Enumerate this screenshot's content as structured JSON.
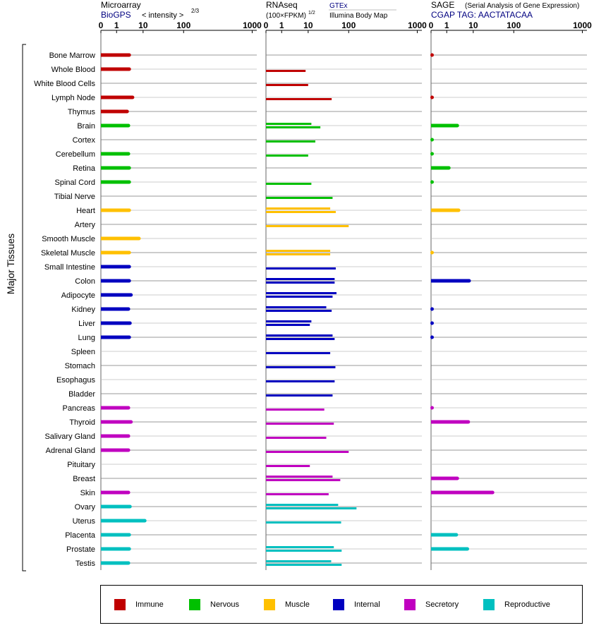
{
  "chart_data": {
    "type": "bar",
    "axis_title": "Major Tissues",
    "tissues": [
      "Bone Marrow",
      "Whole Blood",
      "White Blood Cells",
      "Lymph Node",
      "Thymus",
      "Brain",
      "Cortex",
      "Cerebellum",
      "Retina",
      "Spinal Cord",
      "Tibial Nerve",
      "Heart",
      "Artery",
      "Smooth Muscle",
      "Skeletal Muscle",
      "Small Intestine",
      "Colon",
      "Adipocyte",
      "Kidney",
      "Liver",
      "Lung",
      "Spleen",
      "Stomach",
      "Esophagus",
      "Bladder",
      "Pancreas",
      "Thyroid",
      "Salivary Gland",
      "Adrenal Gland",
      "Pituitary",
      "Breast",
      "Skin",
      "Ovary",
      "Uterus",
      "Placenta",
      "Prostate",
      "Testis"
    ],
    "groups": [
      "immune",
      "immune",
      "immune",
      "immune",
      "immune",
      "nervous",
      "nervous",
      "nervous",
      "nervous",
      "nervous",
      "nervous",
      "muscle",
      "muscle",
      "muscle",
      "muscle",
      "internal",
      "internal",
      "internal",
      "internal",
      "internal",
      "internal",
      "internal",
      "internal",
      "internal",
      "internal",
      "secretory",
      "secretory",
      "secretory",
      "secretory",
      "secretory",
      "secretory",
      "secretory",
      "reproductive",
      "reproductive",
      "reproductive",
      "reproductive",
      "reproductive"
    ],
    "colors": {
      "immune": "#c00000",
      "nervous": "#00c000",
      "muscle": "#ffc000",
      "internal": "#0000c0",
      "secretory": "#c000c0",
      "reproductive": "#00c0c0"
    },
    "tick_labels": [
      "0",
      "1",
      "10",
      "100",
      "1000"
    ],
    "tick_values": [
      0,
      1,
      10,
      100,
      1000
    ],
    "panels": [
      {
        "title": "Microarray",
        "source": "BioGPS",
        "scale_label": "< intensity >",
        "exponent": "2/3",
        "values": [
          3.0,
          3.0,
          null,
          4.0,
          2.5,
          2.8,
          null,
          2.8,
          3.0,
          3.0,
          null,
          3.0,
          null,
          7.0,
          3.0,
          3.0,
          3.0,
          3.5,
          2.8,
          3.2,
          3.0,
          null,
          null,
          null,
          null,
          2.8,
          3.5,
          2.8,
          2.8,
          null,
          null,
          2.8,
          3.2,
          11.0,
          3.0,
          3.0,
          2.8
        ],
        "values_b": [
          null,
          null,
          null,
          null,
          null,
          null,
          null,
          null,
          null,
          null,
          null,
          null,
          null,
          null,
          null,
          null,
          null,
          null,
          null,
          null,
          null,
          null,
          null,
          null,
          null,
          null,
          null,
          null,
          null,
          null,
          null,
          null,
          null,
          null,
          null,
          null,
          null
        ]
      },
      {
        "title": "RNAseq",
        "scale_label": "(100×FPKM)",
        "exponent": "1/2",
        "source_a": "GTEx",
        "source_b": "Illumina Body Map",
        "values": [
          null,
          null,
          null,
          null,
          null,
          12,
          null,
          null,
          null,
          null,
          null,
          35,
          null,
          null,
          35,
          null,
          45,
          50,
          28,
          12,
          40,
          null,
          null,
          null,
          null,
          null,
          null,
          null,
          null,
          null,
          40,
          null,
          55,
          null,
          null,
          43,
          37
        ],
        "values_b": [
          null,
          8,
          10,
          38,
          null,
          20,
          15,
          10,
          null,
          12,
          40,
          48,
          100,
          null,
          35,
          48,
          45,
          40,
          38,
          11,
          45,
          35,
          47,
          45,
          40,
          25,
          43,
          28,
          100,
          11,
          62,
          32,
          130,
          65,
          null,
          67,
          67
        ]
      },
      {
        "title": "SAGE",
        "subtitle": "(Serial Analysis of Gene Expression)",
        "source": "CGAP TAG: AACTATACAA",
        "values": [
          0.05,
          null,
          null,
          0.05,
          null,
          2.5,
          0.05,
          0.05,
          1.2,
          0.05,
          null,
          2.8,
          null,
          null,
          0.02,
          null,
          7.0,
          null,
          0.05,
          0.05,
          0.05,
          null,
          null,
          null,
          null,
          0.05,
          6.5,
          null,
          null,
          null,
          2.5,
          30,
          null,
          null,
          2.3,
          6.0,
          null
        ],
        "values_b": [
          null,
          null,
          null,
          null,
          null,
          null,
          null,
          null,
          null,
          null,
          null,
          null,
          null,
          null,
          null,
          null,
          null,
          null,
          null,
          null,
          null,
          null,
          null,
          null,
          null,
          null,
          null,
          null,
          null,
          null,
          null,
          null,
          null,
          null,
          null,
          null,
          null
        ]
      }
    ],
    "legend": [
      {
        "key": "immune",
        "label": "Immune"
      },
      {
        "key": "nervous",
        "label": "Nervous"
      },
      {
        "key": "muscle",
        "label": "Muscle"
      },
      {
        "key": "internal",
        "label": "Internal"
      },
      {
        "key": "secretory",
        "label": "Secretory"
      },
      {
        "key": "reproductive",
        "label": "Reproductive"
      }
    ]
  }
}
